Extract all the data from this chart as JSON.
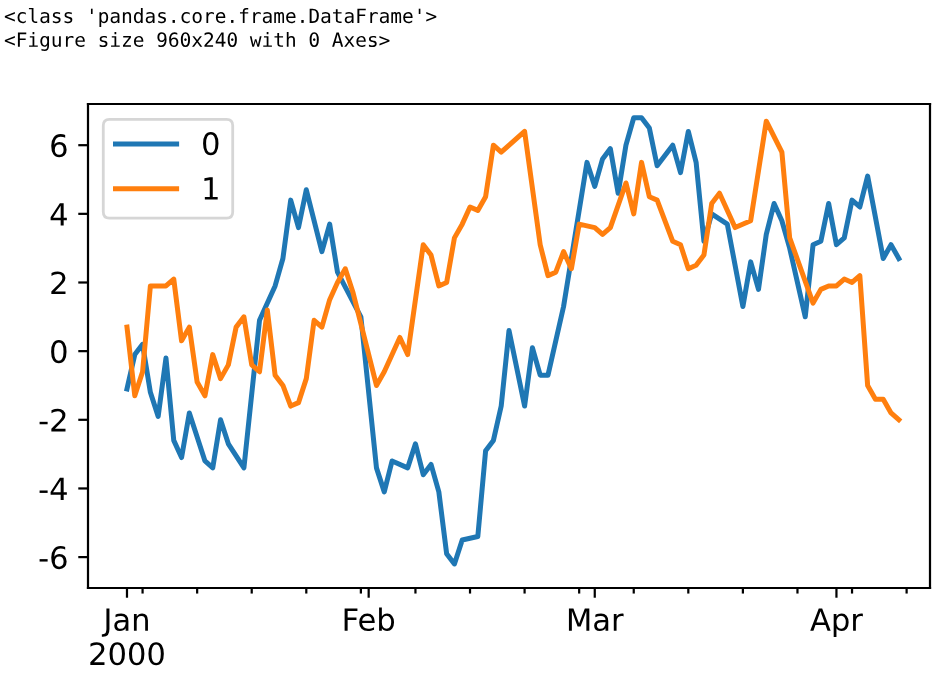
{
  "chart_data": {
    "type": "line",
    "annotations": [
      "<class 'pandas.core.frame.DataFrame'>",
      "<Figure size 960x240 with 0 Axes>"
    ],
    "series": [
      {
        "name": "0",
        "color": "#1f77b4",
        "x": [
          "2000-01-01",
          "2000-01-02",
          "2000-01-03",
          "2000-01-04",
          "2000-01-05",
          "2000-01-06",
          "2000-01-07",
          "2000-01-08",
          "2000-01-09",
          "2000-01-11",
          "2000-01-12",
          "2000-01-13",
          "2000-01-14",
          "2000-01-16",
          "2000-01-18",
          "2000-01-20",
          "2000-01-21",
          "2000-01-22",
          "2000-01-23",
          "2000-01-24",
          "2000-01-26",
          "2000-01-27",
          "2000-01-28",
          "2000-01-31",
          "2000-02-02",
          "2000-02-03",
          "2000-02-04",
          "2000-02-06",
          "2000-02-07",
          "2000-02-08",
          "2000-02-09",
          "2000-02-10",
          "2000-02-11",
          "2000-02-12",
          "2000-02-13",
          "2000-02-15",
          "2000-02-16",
          "2000-02-17",
          "2000-02-18",
          "2000-02-19",
          "2000-02-21",
          "2000-02-22",
          "2000-02-23",
          "2000-02-24",
          "2000-02-26",
          "2000-02-29",
          "2000-03-01",
          "2000-03-02",
          "2000-03-03",
          "2000-03-04",
          "2000-03-05",
          "2000-03-06",
          "2000-03-07",
          "2000-03-08",
          "2000-03-09",
          "2000-03-11",
          "2000-03-12",
          "2000-03-13",
          "2000-03-14",
          "2000-03-15",
          "2000-03-16",
          "2000-03-18",
          "2000-03-20",
          "2000-03-21",
          "2000-03-22",
          "2000-03-23",
          "2000-03-24",
          "2000-03-25",
          "2000-03-26",
          "2000-03-28",
          "2000-03-29",
          "2000-03-30",
          "2000-03-31",
          "2000-04-01",
          "2000-04-02",
          "2000-04-03",
          "2000-04-04",
          "2000-04-05",
          "2000-04-07",
          "2000-04-08",
          "2000-04-09"
        ],
        "values": [
          -1.1,
          -0.1,
          0.2,
          -1.2,
          -1.9,
          -0.2,
          -2.6,
          -3.1,
          -1.8,
          -3.2,
          -3.4,
          -2.0,
          -2.7,
          -3.4,
          0.9,
          1.9,
          2.7,
          4.4,
          3.6,
          4.7,
          2.9,
          3.7,
          2.3,
          1.0,
          -3.4,
          -4.1,
          -3.2,
          -3.4,
          -2.7,
          -3.6,
          -3.3,
          -4.1,
          -5.9,
          -6.2,
          -5.5,
          -5.4,
          -2.9,
          -2.6,
          -1.6,
          0.6,
          -1.6,
          0.1,
          -0.7,
          -0.7,
          1.3,
          5.5,
          4.8,
          5.6,
          5.9,
          4.6,
          6.0,
          6.8,
          6.8,
          6.5,
          5.4,
          6.0,
          5.2,
          6.4,
          5.5,
          3.2,
          4.0,
          3.7,
          1.3,
          2.6,
          1.8,
          3.4,
          4.3,
          3.8,
          3.0,
          1.0,
          3.1,
          3.2,
          4.3,
          3.1,
          3.3,
          4.4,
          4.2,
          5.1,
          2.7,
          3.1,
          2.7
        ]
      },
      {
        "name": "1",
        "color": "#ff7f0e",
        "x": [
          "2000-01-01",
          "2000-01-02",
          "2000-01-03",
          "2000-01-04",
          "2000-01-06",
          "2000-01-07",
          "2000-01-08",
          "2000-01-09",
          "2000-01-10",
          "2000-01-11",
          "2000-01-12",
          "2000-01-13",
          "2000-01-14",
          "2000-01-15",
          "2000-01-16",
          "2000-01-17",
          "2000-01-18",
          "2000-01-19",
          "2000-01-20",
          "2000-01-21",
          "2000-01-22",
          "2000-01-23",
          "2000-01-24",
          "2000-01-25",
          "2000-01-26",
          "2000-01-27",
          "2000-01-28",
          "2000-01-29",
          "2000-01-30",
          "2000-02-02",
          "2000-02-03",
          "2000-02-05",
          "2000-02-06",
          "2000-02-08",
          "2000-02-09",
          "2000-02-10",
          "2000-02-11",
          "2000-02-12",
          "2000-02-13",
          "2000-02-14",
          "2000-02-15",
          "2000-02-16",
          "2000-02-17",
          "2000-02-18",
          "2000-02-21",
          "2000-02-23",
          "2000-02-24",
          "2000-02-25",
          "2000-02-26",
          "2000-02-27",
          "2000-02-28",
          "2000-03-01",
          "2000-03-02",
          "2000-03-03",
          "2000-03-05",
          "2000-03-06",
          "2000-03-07",
          "2000-03-08",
          "2000-03-09",
          "2000-03-11",
          "2000-03-12",
          "2000-03-13",
          "2000-03-14",
          "2000-03-15",
          "2000-03-16",
          "2000-03-17",
          "2000-03-19",
          "2000-03-21",
          "2000-03-23",
          "2000-03-25",
          "2000-03-26",
          "2000-03-29",
          "2000-03-30",
          "2000-03-31",
          "2000-04-01",
          "2000-04-02",
          "2000-04-03",
          "2000-04-04",
          "2000-04-05",
          "2000-04-06",
          "2000-04-07",
          "2000-04-08",
          "2000-04-09"
        ],
        "values": [
          0.7,
          -1.3,
          -0.6,
          1.9,
          1.9,
          2.1,
          0.3,
          0.7,
          -0.9,
          -1.3,
          -0.1,
          -0.8,
          -0.4,
          0.7,
          1.0,
          -0.4,
          -0.6,
          1.2,
          -0.7,
          -1.0,
          -1.6,
          -1.5,
          -0.8,
          0.9,
          0.7,
          1.5,
          2.0,
          2.4,
          1.7,
          -1.0,
          -0.6,
          0.4,
          -0.1,
          3.1,
          2.8,
          1.9,
          2.0,
          3.3,
          3.7,
          4.2,
          4.1,
          4.5,
          6.0,
          5.8,
          6.4,
          3.1,
          2.2,
          2.3,
          2.9,
          2.4,
          3.7,
          3.6,
          3.4,
          3.6,
          4.9,
          4.0,
          5.5,
          4.5,
          4.4,
          3.2,
          3.1,
          2.4,
          2.5,
          2.8,
          4.3,
          4.6,
          3.6,
          3.8,
          6.7,
          5.8,
          3.3,
          1.4,
          1.8,
          1.9,
          1.9,
          2.1,
          2.0,
          2.2,
          -1.0,
          -1.4,
          -1.4,
          -1.8,
          -2.0
        ]
      }
    ],
    "xlim": [
      "1999-12-27",
      "2000-04-13"
    ],
    "xticks": [
      {
        "value": "2000-01-01",
        "label": "Jan\n2000"
      },
      {
        "value": "2000-02-01",
        "label": "Feb"
      },
      {
        "value": "2000-03-01",
        "label": "Mar"
      },
      {
        "value": "2000-04-01",
        "label": "Apr"
      },
      {
        "value": "2000-01-03",
        "label": null
      },
      {
        "value": "2000-01-10",
        "label": null
      },
      {
        "value": "2000-01-17",
        "label": null
      },
      {
        "value": "2000-01-24",
        "label": null
      },
      {
        "value": "2000-01-31",
        "label": null
      },
      {
        "value": "2000-02-07",
        "label": null
      },
      {
        "value": "2000-02-14",
        "label": null
      },
      {
        "value": "2000-02-21",
        "label": null
      },
      {
        "value": "2000-02-28",
        "label": null
      },
      {
        "value": "2000-03-06",
        "label": null
      },
      {
        "value": "2000-03-13",
        "label": null
      },
      {
        "value": "2000-03-20",
        "label": null
      },
      {
        "value": "2000-03-27",
        "label": null
      },
      {
        "value": "2000-04-03",
        "label": null
      },
      {
        "value": "2000-04-10",
        "label": null
      }
    ],
    "ylim": [
      -6.9,
      7.2
    ],
    "yticks": [
      -6,
      -4,
      -2,
      0,
      2,
      4,
      6
    ],
    "legend": "top left",
    "grid": false,
    "line_style": "solid",
    "marker": "none"
  }
}
